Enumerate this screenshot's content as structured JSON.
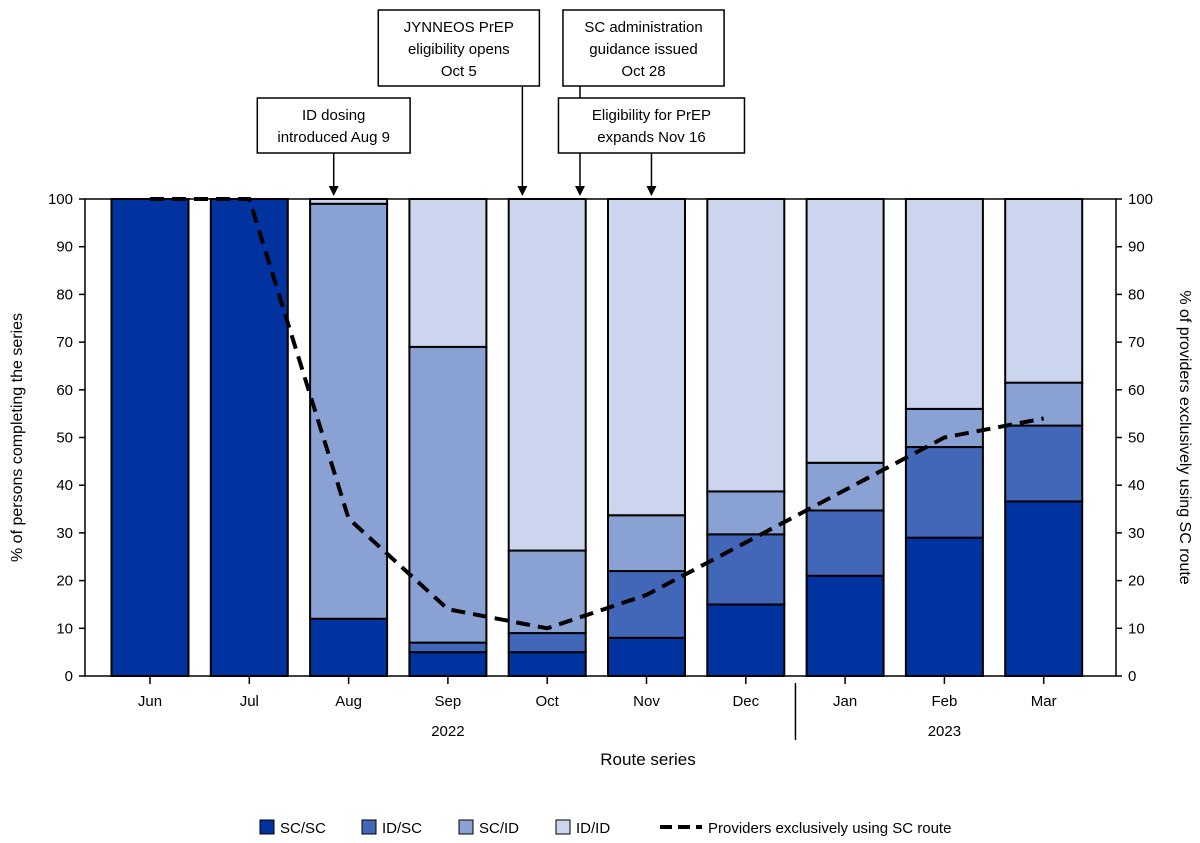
{
  "chart_data": {
    "type": "bar",
    "stacked": true,
    "categories": [
      "Jun",
      "Jul",
      "Aug",
      "Sep",
      "Oct",
      "Nov",
      "Dec",
      "Jan",
      "Feb",
      "Mar"
    ],
    "year_groups": [
      {
        "label": "2022",
        "categories": [
          "Jun",
          "Jul",
          "Aug",
          "Sep",
          "Oct",
          "Nov",
          "Dec"
        ]
      },
      {
        "label": "2023",
        "categories": [
          "Jan",
          "Feb",
          "Mar"
        ]
      }
    ],
    "series": [
      {
        "name": "SC/SC",
        "color": "#0033a0",
        "values": [
          100,
          100,
          12,
          5,
          5,
          8,
          15,
          21,
          29,
          36.6
        ]
      },
      {
        "name": "ID/SC",
        "color": "#4267b8",
        "values": [
          0,
          0,
          0,
          2,
          4,
          14,
          14.7,
          13.7,
          19,
          15.9
        ]
      },
      {
        "name": "SC/ID",
        "color": "#8aa1d4",
        "values": [
          0,
          0,
          87,
          62,
          17.3,
          11.7,
          9,
          10,
          8,
          9
        ]
      },
      {
        "name": "ID/ID",
        "color": "#cbd6ee",
        "values": [
          0,
          0,
          1,
          31,
          73.7,
          66.3,
          61.3,
          55.3,
          44,
          38.5
        ]
      }
    ],
    "line_series": {
      "name": "Providers exclusively using SC route",
      "axis": "right",
      "style": "dashed",
      "color": "#000000",
      "values": [
        100,
        100,
        33,
        14,
        10,
        17,
        28,
        39,
        50,
        54
      ]
    },
    "xlabel": "Route series",
    "ylabel": "% of persons completing the series",
    "y2label": "% of providers exclusively using SC route",
    "ylim": [
      0,
      100
    ],
    "y2lim": [
      0,
      100
    ],
    "yticks": [
      0,
      10,
      20,
      30,
      40,
      50,
      60,
      70,
      80,
      90,
      100
    ],
    "grid": false,
    "legend_position": "bottom",
    "annotations": [
      {
        "lines": [
          "ID dosing",
          "introduced Aug 9"
        ],
        "category": "Aug",
        "offset": -0.15
      },
      {
        "lines": [
          "JYNNEOS PrEP",
          "eligibility opens",
          "Oct 5"
        ],
        "category": "Oct",
        "offset": -0.25
      },
      {
        "lines": [
          "SC administration",
          "guidance issued",
          "Oct 28"
        ],
        "category": "Oct",
        "offset": 0.33
      },
      {
        "lines": [
          "Eligibility for PrEP",
          "expands Nov 16"
        ],
        "category": "Nov",
        "offset": 0.05
      }
    ]
  }
}
